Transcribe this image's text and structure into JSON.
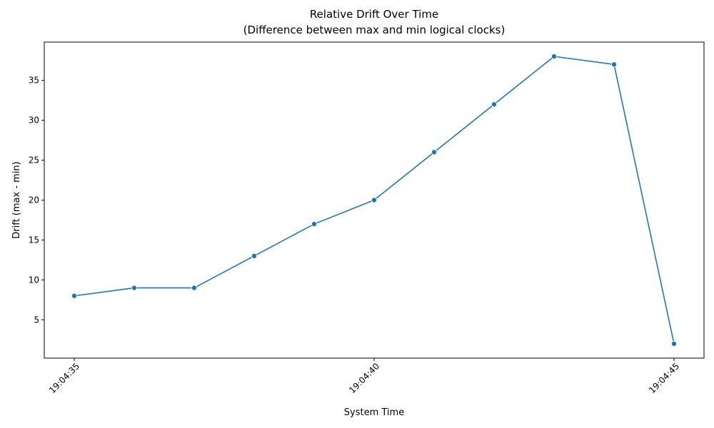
{
  "chart_data": {
    "type": "line",
    "title": "Relative Drift Over Time",
    "subtitle": "(Difference between max and min logical clocks)",
    "xlabel": "System Time",
    "ylabel": "Drift (max - min)",
    "x_ticks": [
      "19:04:35",
      "19:04:40",
      "19:04:45"
    ],
    "y_ticks": [
      5,
      10,
      15,
      20,
      25,
      30,
      35
    ],
    "xlim": [
      "19:04:34.5",
      "19:04:45.5"
    ],
    "ylim": [
      0.2,
      39.8
    ],
    "grid": false,
    "series": [
      {
        "color": "#1f77b4",
        "marker": "circle",
        "x": [
          "19:04:35",
          "19:04:36",
          "19:04:37",
          "19:04:38",
          "19:04:39",
          "19:04:40",
          "19:04:41",
          "19:04:42",
          "19:04:43",
          "19:04:44",
          "19:04:45"
        ],
        "values": [
          8,
          9,
          9,
          13,
          17,
          20,
          26,
          32,
          38,
          37,
          2
        ]
      }
    ]
  }
}
